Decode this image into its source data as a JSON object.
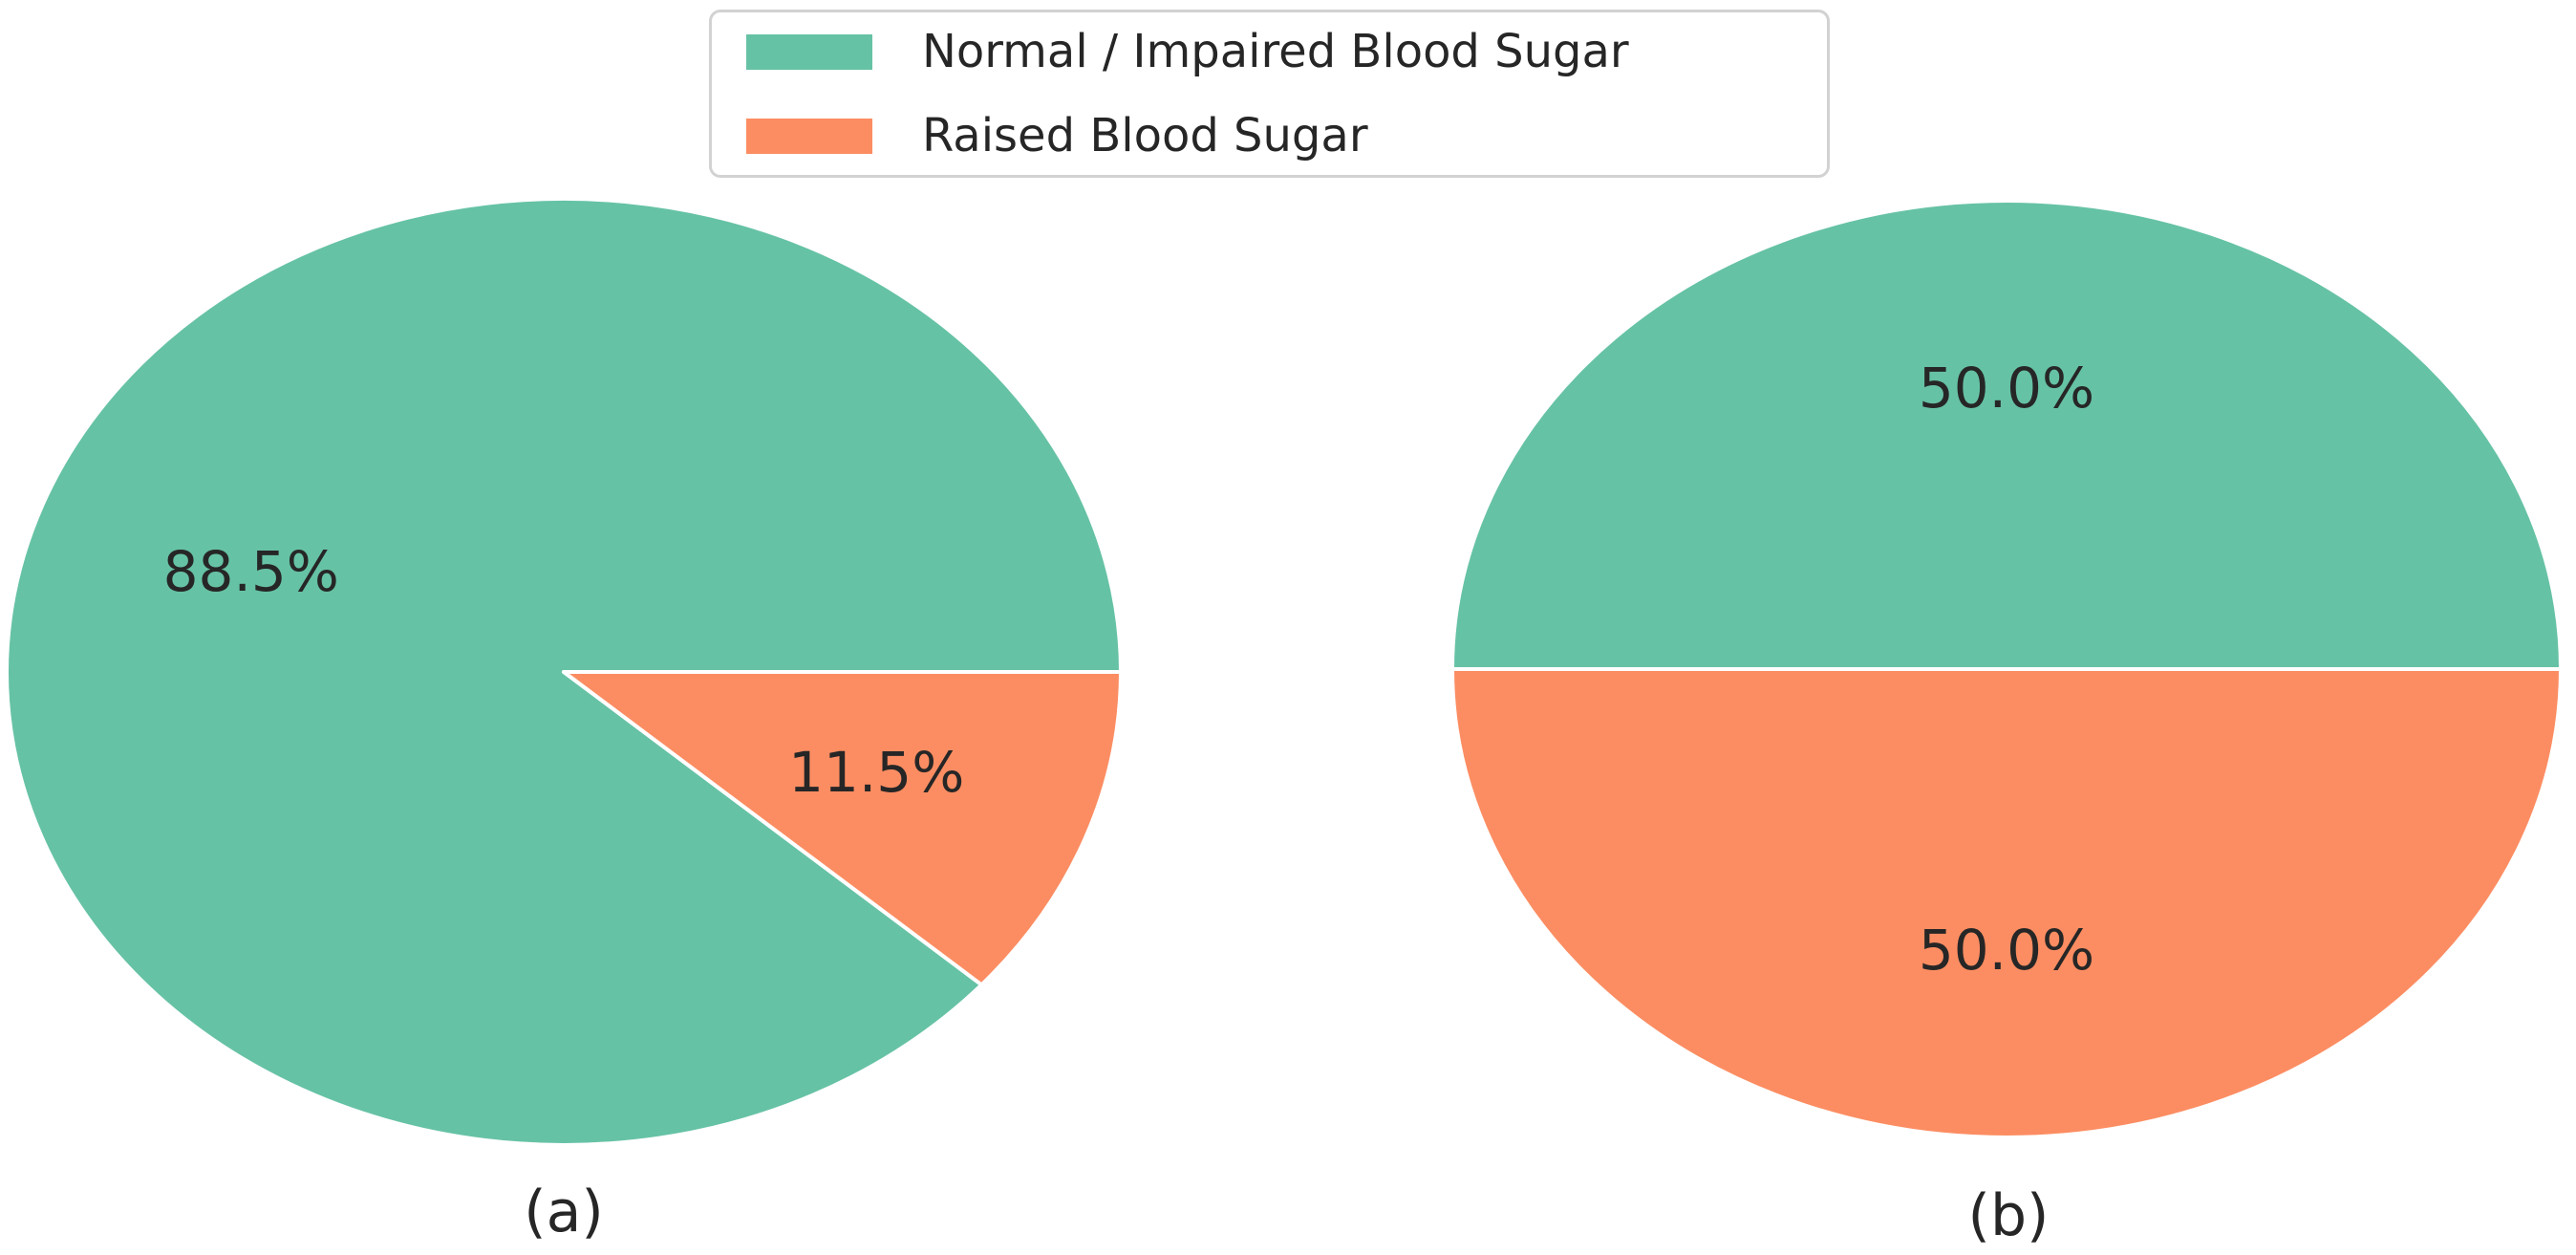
{
  "figure": {
    "background": "#ffffff",
    "text_color": "#262626",
    "legend": {
      "position": "upper center",
      "items": [
        {
          "label": "Normal / Impaired Blood Sugar",
          "color": "#66c2a5"
        },
        {
          "label": "Raised Blood Sugar",
          "color": "#fc8d62"
        }
      ]
    }
  },
  "chart_data": [
    {
      "type": "pie",
      "caption": "(a)",
      "labels": [
        "Normal / Impaired Blood Sugar",
        "Raised Blood Sugar"
      ],
      "values": [
        88.5,
        11.5
      ],
      "pct_labels": [
        "88.5%",
        "11.5%"
      ],
      "colors": [
        "#66c2a5",
        "#fc8d62"
      ],
      "startangle": 0,
      "counterclock": true,
      "pctdistance": 0.6,
      "wedge_edgecolor": "#ffffff"
    },
    {
      "type": "pie",
      "caption": "(b)",
      "labels": [
        "Normal / Impaired Blood Sugar",
        "Raised Blood Sugar"
      ],
      "values": [
        50.0,
        50.0
      ],
      "pct_labels": [
        "50.0%",
        "50.0%"
      ],
      "colors": [
        "#66c2a5",
        "#fc8d62"
      ],
      "startangle": 0,
      "counterclock": true,
      "pctdistance": 0.6,
      "wedge_edgecolor": "#ffffff"
    }
  ]
}
